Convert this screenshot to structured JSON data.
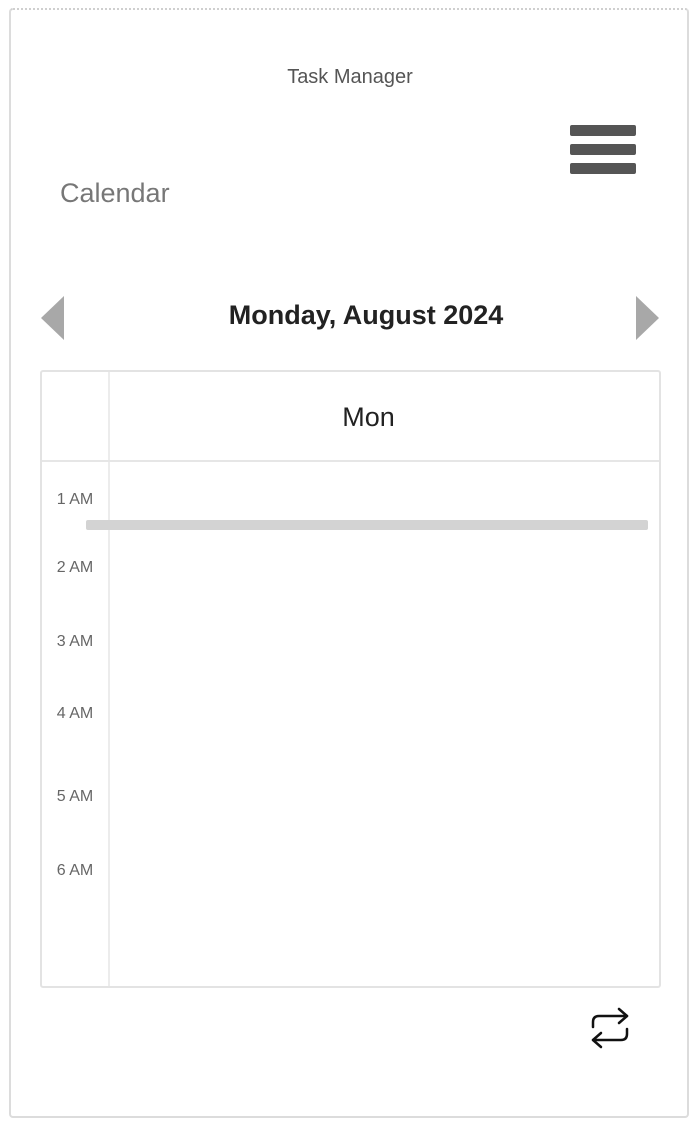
{
  "header": {
    "app_title": "Task Manager",
    "menu_icon": "hamburger-menu-icon"
  },
  "section": {
    "title": "Calendar"
  },
  "navigation": {
    "prev_icon": "triangle-left-icon",
    "next_icon": "triangle-right-icon",
    "date_label": "Monday, August 2024"
  },
  "calendar": {
    "day_header": "Mon",
    "hours": [
      "1 AM",
      "2 AM",
      "3 AM",
      "4 AM",
      "5 AM",
      "6 AM"
    ]
  },
  "footer": {
    "repeat_icon": "repeat-icon"
  },
  "colors": {
    "icon_dark": "#555555",
    "arrow_gray": "#a8a8a8",
    "now_bar": "#d3d3d3"
  }
}
